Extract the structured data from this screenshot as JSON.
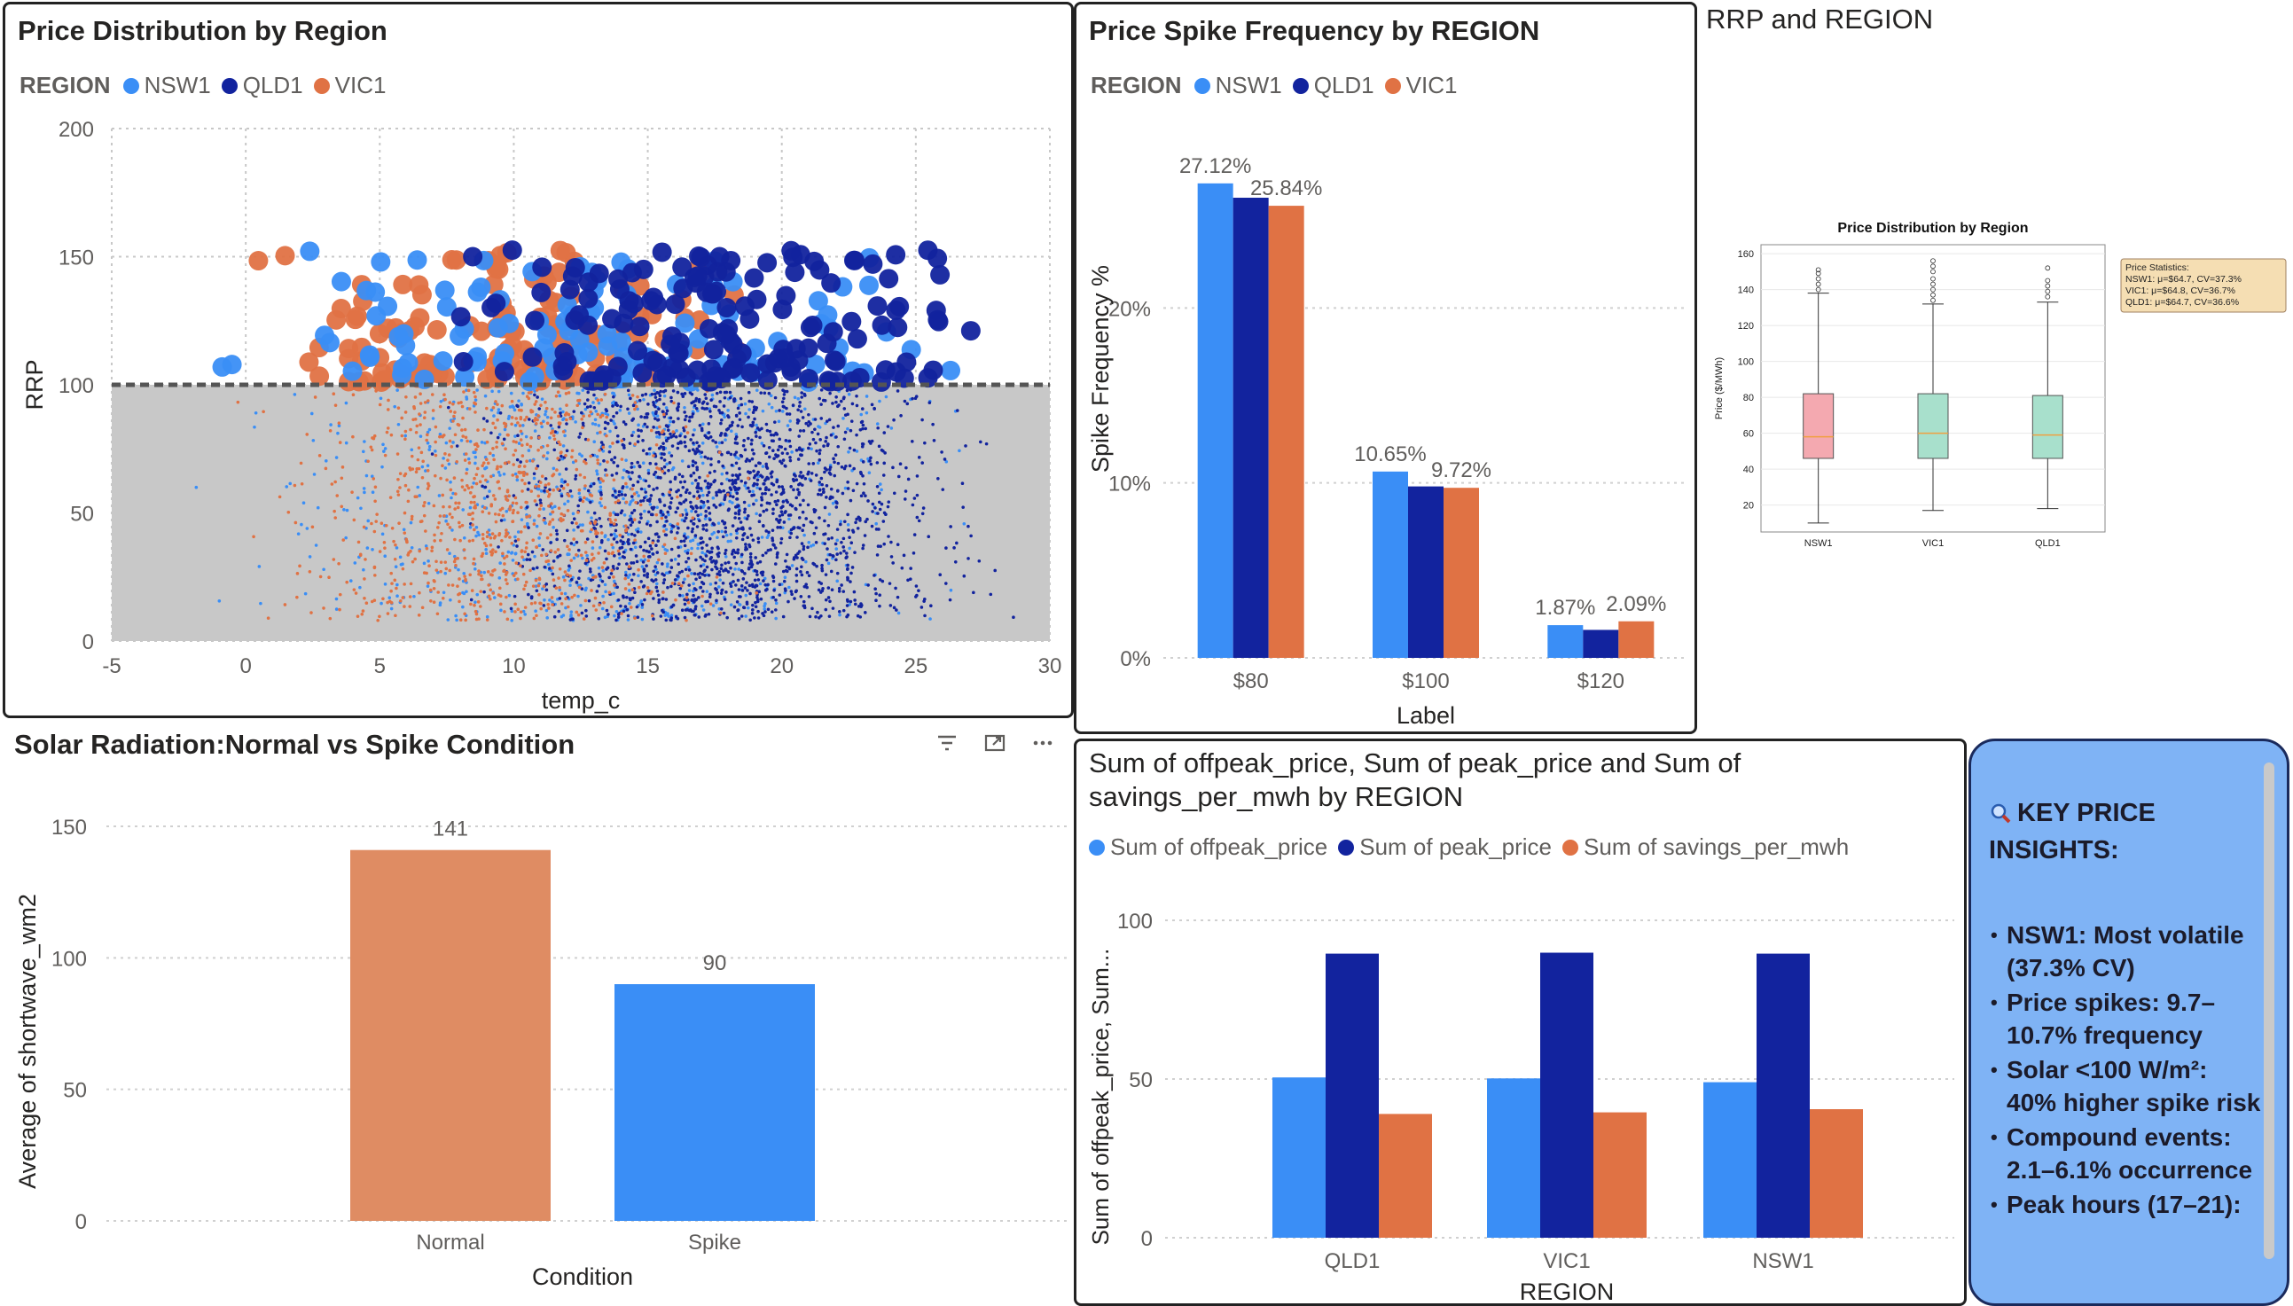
{
  "panels": {
    "scatter": {
      "title": "Price Distribution by Region",
      "legend_title": "REGION",
      "legend": [
        {
          "name": "NSW1",
          "color": "#3a8ef6"
        },
        {
          "name": "QLD1",
          "color": "#12239e"
        },
        {
          "name": "VIC1",
          "color": "#e07244"
        }
      ]
    },
    "spike": {
      "title": "Price Spike Frequency by REGION",
      "legend_title": "REGION",
      "legend": [
        {
          "name": "NSW1",
          "color": "#3a8ef6"
        },
        {
          "name": "QLD1",
          "color": "#12239e"
        },
        {
          "name": "VIC1",
          "color": "#e07244"
        }
      ]
    },
    "boxplot": {
      "title": "RRP and REGION"
    },
    "solar": {
      "title": "Solar Radiation:Normal vs Spike Condition",
      "toolbar": {
        "filter_icon": "filter-icon",
        "focus_icon": "focus-mode-icon",
        "more_icon": "more-options-icon"
      }
    },
    "sums": {
      "title": "Sum of offpeak_price, Sum of peak_price and Sum of savings_per_mwh by REGION",
      "legend": [
        {
          "name": "Sum of offpeak_price",
          "color": "#3a8ef6"
        },
        {
          "name": "Sum of peak_price",
          "color": "#12239e"
        },
        {
          "name": "Sum of savings_per_mwh",
          "color": "#e07244"
        }
      ]
    },
    "insights": {
      "icon": "magnifier-icon",
      "title": "KEY PRICE INSIGHTS:",
      "items": [
        "NSW1: Most volatile (37.3% CV)",
        "Price spikes: 9.7–10.7% frequency",
        "Solar <100 W/m²: 40% higher spike risk",
        "Compound events: 2.1–6.1% occurrence",
        "Peak hours (17–21):"
      ],
      "bg_color": "#7fb3f5"
    }
  },
  "chart_data": [
    {
      "id": "scatter",
      "type": "scatter",
      "title": "Price Distribution by Region",
      "xlabel": "temp_c",
      "ylabel": "RRP",
      "xlim": [
        -5,
        30
      ],
      "ylim": [
        0,
        200
      ],
      "xticks": [
        -5,
        0,
        5,
        10,
        15,
        20,
        25,
        30
      ],
      "yticks": [
        0,
        50,
        100,
        150,
        200
      ],
      "threshold": 100,
      "shaded_band": [
        0,
        100
      ],
      "series": [
        {
          "name": "NSW1",
          "color": "#3a8ef6",
          "temp_range": [
            -1,
            27
          ]
        },
        {
          "name": "QLD1",
          "color": "#12239e",
          "temp_range": [
            8,
            28
          ]
        },
        {
          "name": "VIC1",
          "color": "#e07244",
          "temp_range": [
            1,
            18
          ]
        }
      ],
      "grid": true
    },
    {
      "id": "spike",
      "type": "bar",
      "title": "Price Spike Frequency by REGION",
      "xlabel": "Label",
      "ylabel": "Spike Frequency %",
      "categories": [
        "$80",
        "$100",
        "$120"
      ],
      "yticks": [
        "0%",
        "10%",
        "20%"
      ],
      "ylim": [
        0,
        30
      ],
      "series": [
        {
          "name": "NSW1",
          "color": "#3a8ef6",
          "values": [
            27.12,
            10.65,
            1.87
          ]
        },
        {
          "name": "QLD1",
          "color": "#12239e",
          "values": [
            26.3,
            9.8,
            1.6
          ]
        },
        {
          "name": "VIC1",
          "color": "#e07244",
          "values": [
            25.84,
            9.72,
            2.09
          ]
        }
      ],
      "data_labels": [
        {
          "series": 0,
          "category": 0,
          "text": "27.12%"
        },
        {
          "series": 2,
          "category": 0,
          "text": "25.84%"
        },
        {
          "series": 0,
          "category": 1,
          "text": "10.65%"
        },
        {
          "series": 2,
          "category": 1,
          "text": "9.72%"
        },
        {
          "series": 0,
          "category": 2,
          "text": "1.87%"
        },
        {
          "series": 2,
          "category": 2,
          "text": "2.09%"
        }
      ],
      "legend": "top-left"
    },
    {
      "id": "boxplot",
      "type": "box",
      "title": "Price Distribution by Region",
      "ylabel": "Price ($/MWh)",
      "categories": [
        "NSW1",
        "VIC1",
        "QLD1"
      ],
      "yticks": [
        20,
        40,
        60,
        80,
        100,
        120,
        140,
        160
      ],
      "ylim": [
        5,
        165
      ],
      "boxes": [
        {
          "name": "NSW1",
          "color": "#f4a9b0",
          "min": 10,
          "q1": 46,
          "median": 58,
          "q3": 82,
          "max": 138,
          "outliers": [
            140,
            143,
            146,
            149,
            151
          ]
        },
        {
          "name": "VIC1",
          "color": "#a8e0cc",
          "min": 17,
          "q1": 46,
          "median": 60,
          "q3": 82,
          "max": 132,
          "outliers": [
            134,
            137,
            140,
            143,
            146,
            150,
            153,
            156
          ]
        },
        {
          "name": "QLD1",
          "color": "#a8e0cc",
          "min": 18,
          "q1": 46,
          "median": 59,
          "q3": 81,
          "max": 133,
          "outliers": [
            136,
            139,
            142,
            145,
            152
          ]
        }
      ],
      "stats_box": [
        "Price Statistics:",
        "NSW1: μ=$64.7, CV=37.3%",
        "VIC1: μ=$64.8, CV=36.7%",
        "QLD1: μ=$64.7, CV=36.6%"
      ],
      "grid": true
    },
    {
      "id": "solar",
      "type": "bar",
      "title": "Solar Radiation:Normal vs Spike Condition",
      "xlabel": "Condition",
      "ylabel": "Average of shortwave_wm2",
      "categories": [
        "Normal",
        "Spike"
      ],
      "values": [
        141,
        90
      ],
      "colors": [
        "#df8c63",
        "#3a8ef6"
      ],
      "data_labels": [
        "141",
        "90"
      ],
      "yticks": [
        0,
        50,
        100,
        150
      ],
      "ylim": [
        0,
        150
      ]
    },
    {
      "id": "sums",
      "type": "bar",
      "title": "Sum of offpeak_price, Sum of peak_price and Sum of savings_per_mwh by REGION",
      "xlabel": "REGION",
      "ylabel": "Sum of offpeak_price, Sum...",
      "categories": [
        "QLD1",
        "VIC1",
        "NSW1"
      ],
      "yticks": [
        0,
        50,
        100
      ],
      "ylim": [
        0,
        100
      ],
      "series": [
        {
          "name": "Sum of offpeak_price",
          "color": "#3a8ef6",
          "values": [
            50.5,
            50.2,
            49
          ]
        },
        {
          "name": "Sum of peak_price",
          "color": "#12239e",
          "values": [
            89.5,
            89.8,
            89.5
          ]
        },
        {
          "name": "Sum of savings_per_mwh",
          "color": "#e07244",
          "values": [
            39,
            39.5,
            40.5
          ]
        }
      ],
      "legend": "top-left"
    }
  ]
}
